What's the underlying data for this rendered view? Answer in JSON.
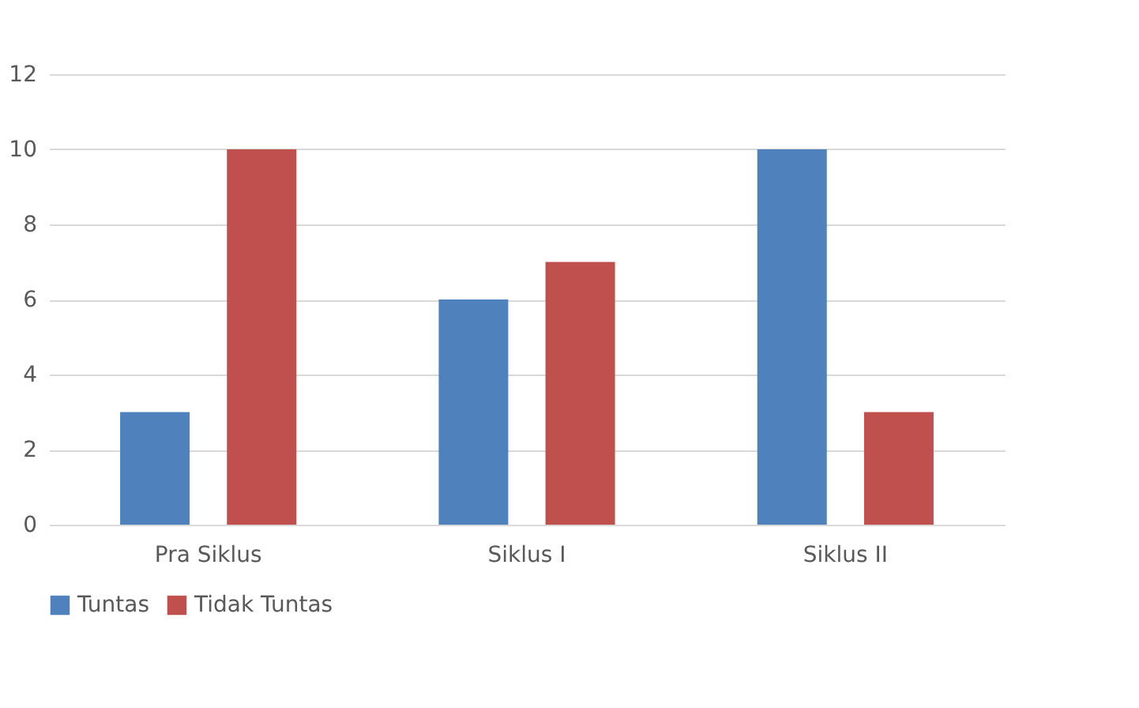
{
  "chart_data": {
    "type": "bar",
    "categories": [
      "Pra Siklus",
      "Siklus I",
      "Siklus II"
    ],
    "series": [
      {
        "name": "Tuntas",
        "color": "#4f81bd",
        "values": [
          3,
          6,
          10
        ]
      },
      {
        "name": "Tidak Tuntas",
        "color": "#c0504d",
        "values": [
          10,
          7,
          3
        ]
      }
    ],
    "ylim": [
      0,
      12
    ],
    "yticks": [
      0,
      2,
      4,
      6,
      8,
      10,
      12
    ],
    "grid": "y",
    "legend": "bottom"
  }
}
